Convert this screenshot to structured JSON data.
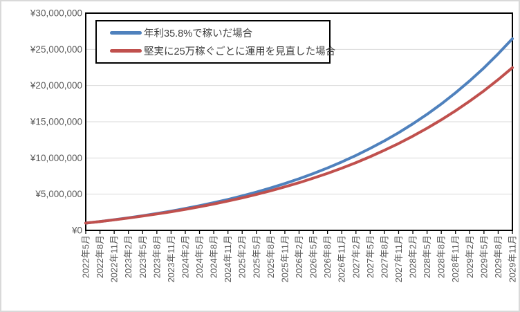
{
  "chart_data": {
    "type": "line",
    "title": "",
    "xlabel": "",
    "ylabel": "",
    "grid": true,
    "legend_position": "top-left-inside",
    "categories": [
      "2022年5月",
      "2022年8月",
      "2022年11月",
      "2023年2月",
      "2023年5月",
      "2023年8月",
      "2023年11月",
      "2024年2月",
      "2024年5月",
      "2024年8月",
      "2024年11月",
      "2025年2月",
      "2025年5月",
      "2025年8月",
      "2025年11月",
      "2026年2月",
      "2026年5月",
      "2026年8月",
      "2026年11月",
      "2027年2月",
      "2027年5月",
      "2027年8月",
      "2027年11月",
      "2028年2月",
      "2028年5月",
      "2028年8月",
      "2028年11月",
      "2029年2月",
      "2029年5月",
      "2029年8月",
      "2029年11月"
    ],
    "series": [
      {
        "name": "年利35.8%で稼いだ場合",
        "color": "#4F81BD",
        "values": [
          1000000,
          1226000,
          1471000,
          1735000,
          2020000,
          2327000,
          2659000,
          3018000,
          3405000,
          3823000,
          4274000,
          4761000,
          5287000,
          5855000,
          6468000,
          7129000,
          7843000,
          8614000,
          9447000,
          10346000,
          11317000,
          12364000,
          13495000,
          14716000,
          16034000,
          17458000,
          18994000,
          20654000,
          22444000,
          24378000,
          26466000
        ]
      },
      {
        "name": "堅実に25万稼ぐごとに運用を見直した場合",
        "color": "#C0504D",
        "values": [
          1000000,
          1219000,
          1453000,
          1704000,
          1974000,
          2263000,
          2573000,
          2905000,
          3261000,
          3643000,
          4052000,
          4491000,
          4962000,
          5466000,
          6007000,
          6587000,
          7209000,
          7876000,
          8590000,
          9357000,
          10178000,
          11059000,
          12003000,
          13016000,
          14101000,
          15268000,
          16514000,
          17853000,
          19285000,
          20823000,
          22474000
        ]
      }
    ],
    "y_axis": {
      "min": 0,
      "max": 30000000,
      "step": 5000000,
      "tick_labels": [
        "¥0",
        "¥5,000,000",
        "¥10,000,000",
        "¥15,000,000",
        "¥20,000,000",
        "¥25,000,000",
        "¥30,000,000"
      ]
    },
    "colors": {
      "gridline": "#d9d9d9",
      "plot_border": "#000000",
      "axis_text": "#595959",
      "outer_border": "#d9d9d9"
    }
  }
}
